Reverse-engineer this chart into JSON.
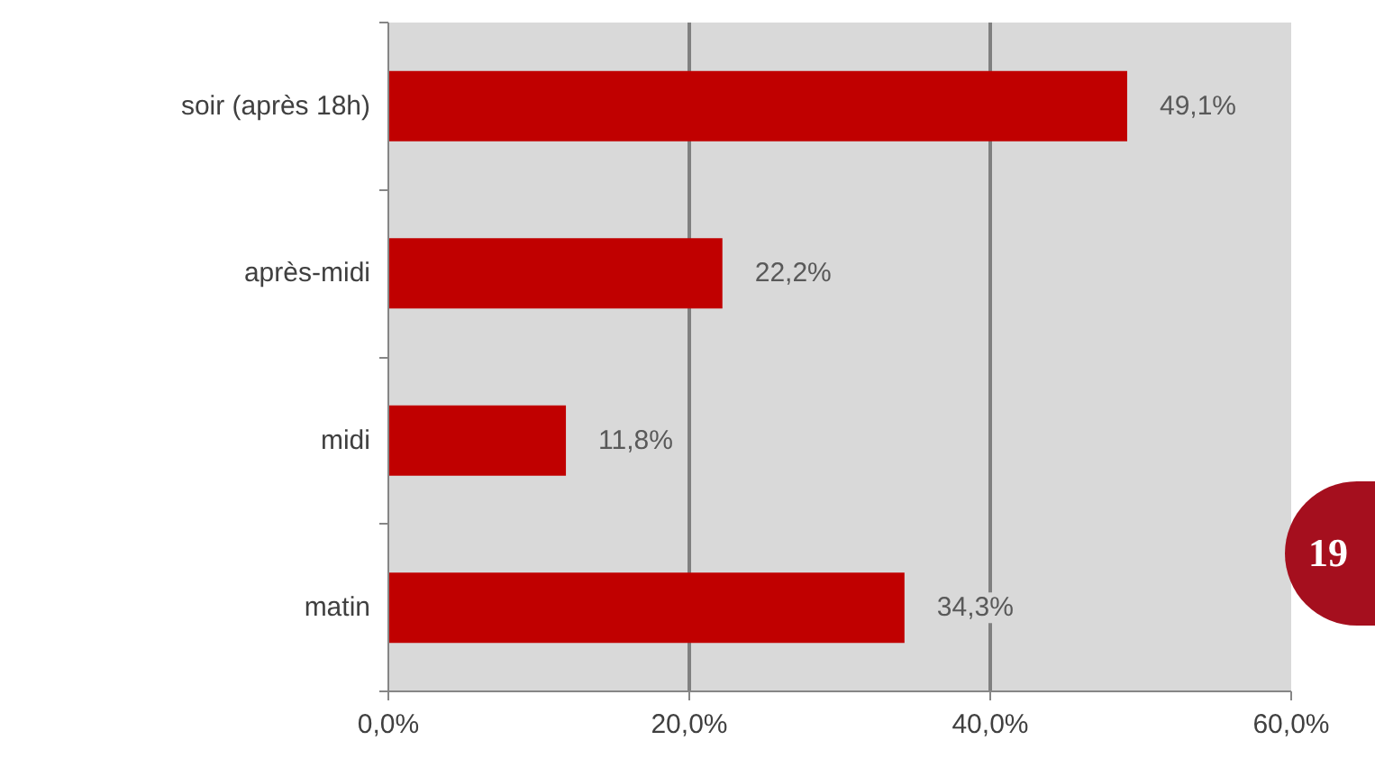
{
  "chart_data": {
    "type": "bar",
    "orientation": "horizontal",
    "categories": [
      "soir (après 18h)",
      "après-midi",
      "midi",
      "matin"
    ],
    "values": [
      49.1,
      22.2,
      11.8,
      34.3
    ],
    "value_labels": [
      "49,1%",
      "22,2%",
      "11,8%",
      "34,3%"
    ],
    "color": "#c00000",
    "xlim": [
      0,
      60
    ],
    "xticks": [
      {
        "value": 0,
        "label": "0,0%"
      },
      {
        "value": 20,
        "label": "20,0%"
      },
      {
        "value": 40,
        "label": "40,0%"
      },
      {
        "value": 60,
        "label": "60,0%"
      }
    ],
    "grid": "x",
    "annotations": [
      "19"
    ]
  }
}
